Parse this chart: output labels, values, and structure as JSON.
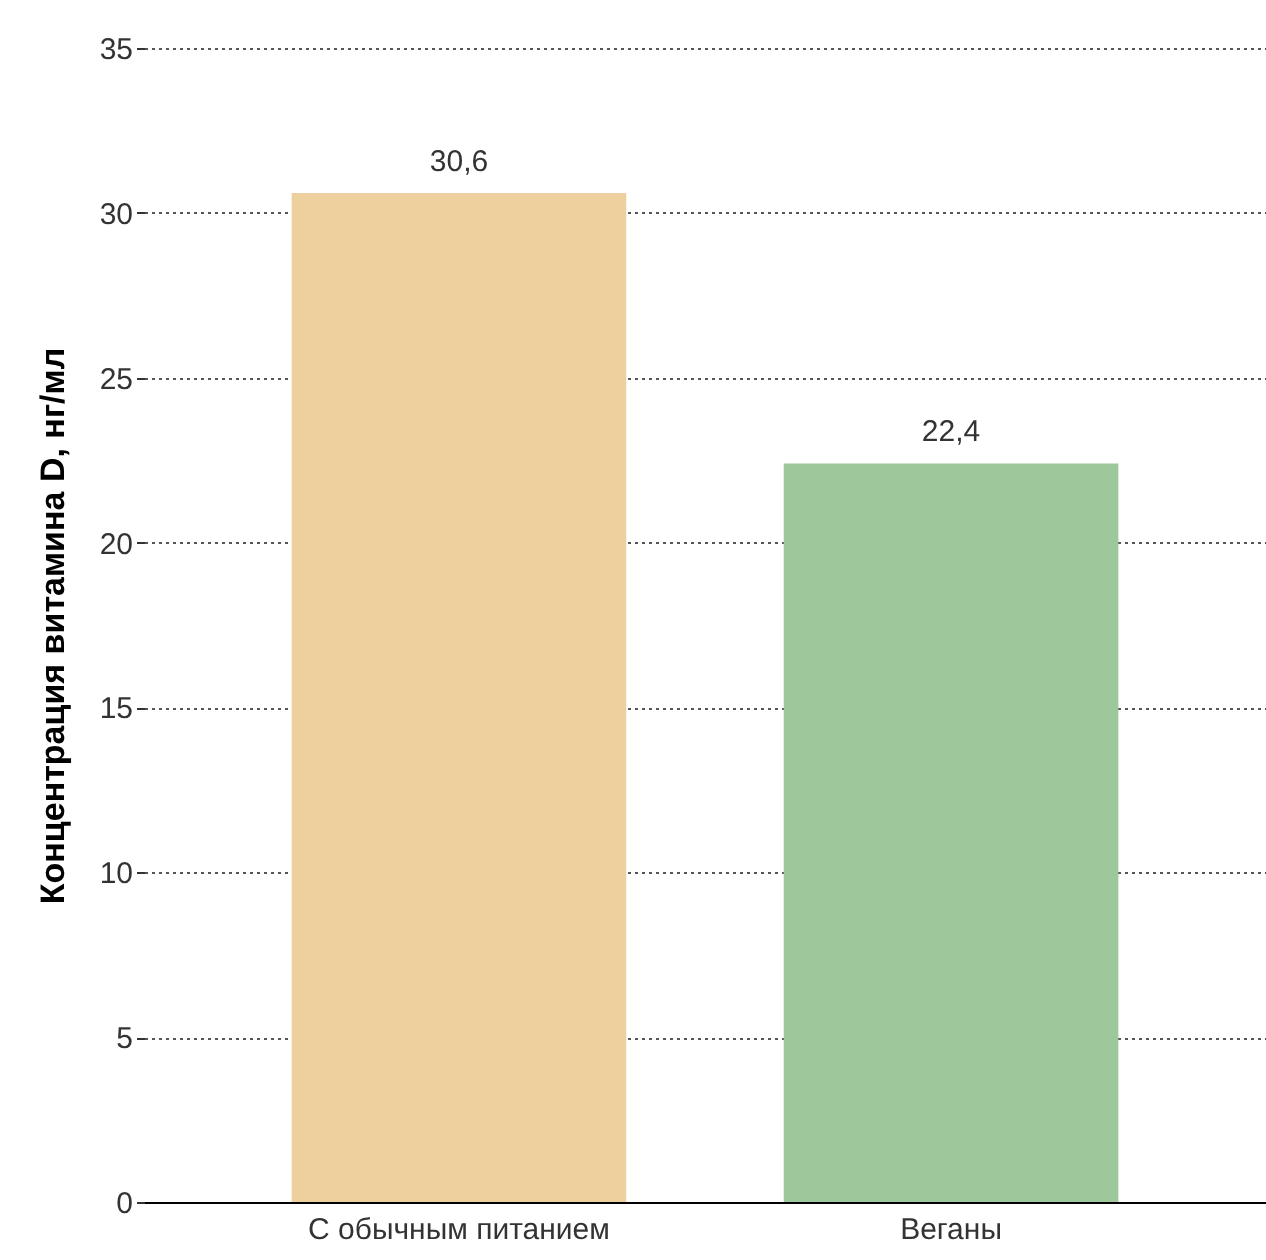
{
  "chart_data": {
    "type": "bar",
    "ylabel": "Концентрация витамина D, нг/мл",
    "categories": [
      "С обычным питанием",
      "Веганы"
    ],
    "values": [
      30.6,
      22.4
    ],
    "colors": [
      "#eecf9e",
      "#9ec79c"
    ],
    "value_labels": [
      "30,6",
      "22,4"
    ],
    "ylim": [
      0,
      35
    ],
    "yticks": [
      0,
      5,
      10,
      15,
      20,
      25,
      30,
      35
    ],
    "grid": "y"
  }
}
